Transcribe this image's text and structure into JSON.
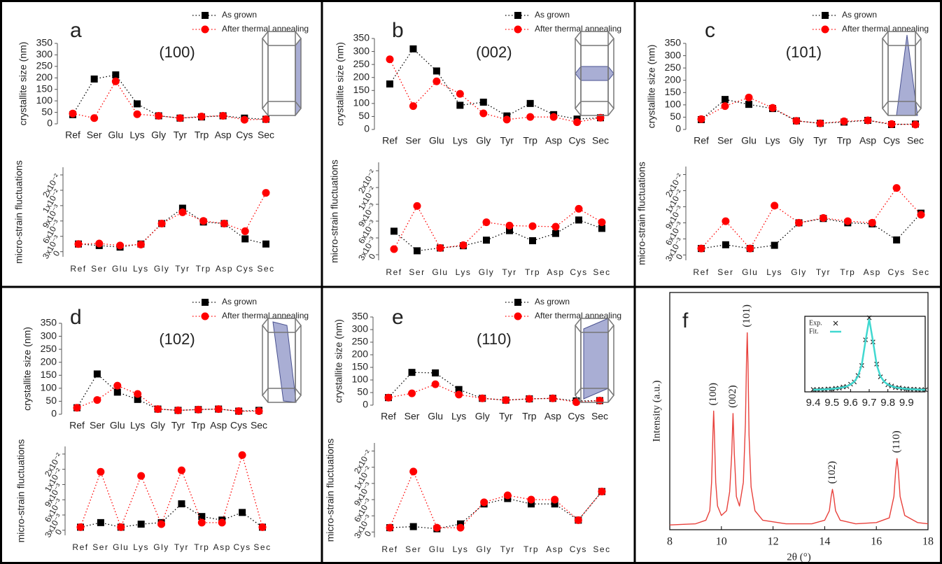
{
  "chart_data": [
    {
      "type": "line",
      "label": "a",
      "title": "(100)",
      "ylabel": "crystallite size (nm)",
      "legend": "upper right",
      "categories": [
        "Ref",
        "Ser",
        "Glu",
        "Lys",
        "Gly",
        "Tyr",
        "Trp",
        "Asp",
        "Cys",
        "Sec"
      ],
      "ylim": [
        0,
        350
      ],
      "yticks": [
        0,
        50,
        100,
        150,
        200,
        250,
        300,
        350
      ],
      "series": [
        {
          "name": "As grown",
          "color": "#000000",
          "marker": "square",
          "values": [
            40,
            195,
            213,
            87,
            35,
            25,
            30,
            35,
            25,
            20
          ]
        },
        {
          "name": "After thermal annealing",
          "color": "#ff0000",
          "marker": "circle",
          "values": [
            45,
            25,
            185,
            42,
            35,
            25,
            32,
            35,
            18,
            20
          ]
        }
      ]
    },
    {
      "type": "line",
      "ylabel": "micro-strain fluctuations",
      "categories": [
        "Ref",
        "Ser",
        "Glu",
        "Lys",
        "Gly",
        "Tyr",
        "Trp",
        "Asp",
        "Cys",
        "Sec"
      ],
      "ylim": [
        -0.001,
        0.0165
      ],
      "yticks": [
        0,
        {
          "value": 0.003,
          "label": "3x10⁻³"
        },
        {
          "value": 0.006,
          "label": "6x10⁻³"
        },
        {
          "value": 0.009,
          "label": "9x10⁻³"
        },
        {
          "value": 0.012,
          "label": "1x10⁻²"
        },
        {
          "value": 0.015,
          "label": "2x10⁻²"
        }
      ],
      "series": [
        {
          "color": "#000000",
          "marker": "square",
          "values": [
            0.0015,
            0.0012,
            0.0009,
            0.0015,
            0.0055,
            0.0085,
            0.0058,
            0.0055,
            0.0025,
            0.0015
          ]
        },
        {
          "color": "#ff0000",
          "marker": "circle",
          "values": [
            0.0015,
            0.0016,
            0.0012,
            0.0014,
            0.0055,
            0.0077,
            0.006,
            0.0055,
            0.004,
            0.0115
          ]
        }
      ]
    },
    {
      "type": "line",
      "label": "b",
      "title": "(002)",
      "ylabel": "crystallite size (nm)",
      "legend": "upper right",
      "categories": [
        "Ref",
        "Ser",
        "Glu",
        "Lys",
        "Gly",
        "Tyr",
        "Trp",
        "Asp",
        "Cys",
        "Sec"
      ],
      "ylim": [
        0,
        350
      ],
      "yticks": [
        0,
        50,
        100,
        150,
        200,
        250,
        300,
        350
      ],
      "series": [
        {
          "name": "As grown",
          "color": "#000000",
          "marker": "square",
          "values": [
            175,
            310,
            225,
            93,
            105,
            52,
            100,
            57,
            40,
            45
          ]
        },
        {
          "name": "After thermal annealing",
          "color": "#ff0000",
          "marker": "circle",
          "values": [
            270,
            90,
            185,
            137,
            62,
            38,
            48,
            48,
            28,
            45
          ]
        }
      ]
    },
    {
      "type": "line",
      "ylabel": "micro-strain fluctuations",
      "categories": [
        "Ref",
        "Ser",
        "Glu",
        "Lys",
        "Gly",
        "Tyr",
        "Trp",
        "Asp",
        "Cys",
        "Sec"
      ],
      "ylim": [
        -0.001,
        0.0165
      ],
      "yticks": [
        0,
        {
          "value": 0.003,
          "label": "3x10⁻³"
        },
        {
          "value": 0.006,
          "label": "6x10⁻³"
        },
        {
          "value": 0.009,
          "label": "9x10⁻³"
        },
        {
          "value": 0.012,
          "label": "1x10⁻²"
        },
        {
          "value": 0.015,
          "label": "2x10⁻²"
        }
      ],
      "series": [
        {
          "color": "#000000",
          "marker": "square",
          "values": [
            0.0042,
            0.0007,
            0.0012,
            0.0016,
            0.0026,
            0.0043,
            0.0025,
            0.0038,
            0.0062,
            0.0047
          ]
        },
        {
          "color": "#ff0000",
          "marker": "circle",
          "values": [
            0.001,
            0.0087,
            0.0012,
            0.0017,
            0.0058,
            0.0052,
            0.0051,
            0.005,
            0.0082,
            0.0058
          ]
        }
      ]
    },
    {
      "type": "line",
      "label": "c",
      "title": "(101)",
      "ylabel": "crystallite size (nm)",
      "legend": "upper right",
      "categories": [
        "Ref",
        "Ser",
        "Glu",
        "Lys",
        "Gly",
        "Tyr",
        "Trp",
        "Asp",
        "Cys",
        "Sec"
      ],
      "ylim": [
        0,
        350
      ],
      "yticks": [
        0,
        50,
        100,
        150,
        200,
        250,
        300,
        350
      ],
      "series": [
        {
          "name": "As grown",
          "color": "#000000",
          "marker": "square",
          "values": [
            40,
            122,
            102,
            85,
            35,
            25,
            30,
            37,
            20,
            22
          ]
        },
        {
          "name": "After thermal annealing",
          "color": "#ff0000",
          "marker": "circle",
          "values": [
            42,
            95,
            130,
            88,
            35,
            25,
            33,
            37,
            22,
            20
          ]
        }
      ]
    },
    {
      "type": "line",
      "ylabel": "micro-strain fluctuations",
      "categories": [
        "Ref",
        "Ser",
        "Glu",
        "Lys",
        "Gly",
        "Tyr",
        "Trp",
        "Asp",
        "Cys",
        "Sec"
      ],
      "ylim": [
        -0.001,
        0.0165
      ],
      "yticks": [
        0,
        {
          "value": 0.003,
          "label": "3x10⁻³"
        },
        {
          "value": 0.006,
          "label": "6x10⁻³"
        },
        {
          "value": 0.009,
          "label": "9x10⁻³"
        },
        {
          "value": 0.012,
          "label": "1x10⁻²"
        },
        {
          "value": 0.015,
          "label": "2x10⁻²"
        }
      ],
      "series": [
        {
          "color": "#000000",
          "marker": "square",
          "values": [
            0.0012,
            0.0019,
            0.0012,
            0.0018,
            0.006,
            0.0068,
            0.006,
            0.0058,
            0.0028,
            0.0078
          ]
        },
        {
          "color": "#ff0000",
          "marker": "circle",
          "values": [
            0.0012,
            0.0063,
            0.0012,
            0.0092,
            0.006,
            0.0069,
            0.0063,
            0.006,
            0.0125,
            0.0075
          ]
        }
      ]
    },
    {
      "type": "line",
      "label": "d",
      "title": "(102)",
      "ylabel": "crystallite size (nm)",
      "legend": "upper right",
      "categories": [
        "Ref",
        "Ser",
        "Glu",
        "Lys",
        "Gly",
        "Tyr",
        "Trp",
        "Asp",
        "Cys",
        "Sec"
      ],
      "ylim": [
        0,
        350
      ],
      "yticks": [
        0,
        50,
        100,
        150,
        200,
        250,
        300,
        350
      ],
      "series": [
        {
          "name": "As grown",
          "color": "#000000",
          "marker": "square",
          "values": [
            25,
            155,
            85,
            57,
            20,
            15,
            18,
            20,
            12,
            15
          ]
        },
        {
          "name": "After thermal annealing",
          "color": "#ff0000",
          "marker": "circle",
          "values": [
            25,
            55,
            110,
            78,
            20,
            15,
            18,
            20,
            12,
            12
          ]
        }
      ]
    },
    {
      "type": "line",
      "ylabel": "micro-strain fluctuations",
      "categories": [
        "Ref",
        "Ser",
        "Glu",
        "Lys",
        "Gly",
        "Tyr",
        "Trp",
        "Asp",
        "Cys",
        "Sec"
      ],
      "ylim": [
        -0.001,
        0.0165
      ],
      "yticks": [
        0,
        {
          "value": 0.003,
          "label": "3x10⁻³"
        },
        {
          "value": 0.006,
          "label": "6x10⁻³"
        },
        {
          "value": 0.009,
          "label": "9x10⁻³"
        },
        {
          "value": 0.012,
          "label": "1x10⁻²"
        },
        {
          "value": 0.015,
          "label": "2x10⁻²"
        }
      ],
      "series": [
        {
          "color": "#000000",
          "marker": "square",
          "values": [
            0.0006,
            0.0015,
            0.0006,
            0.0012,
            0.0015,
            0.0052,
            0.0027,
            0.002,
            0.0035,
            0.0006
          ]
        },
        {
          "color": "#ff0000",
          "marker": "circle",
          "values": [
            0.0006,
            0.0115,
            0.0006,
            0.0107,
            0.0012,
            0.0118,
            0.0015,
            0.0015,
            0.0148,
            0.0006
          ]
        }
      ]
    },
    {
      "type": "line",
      "label": "e",
      "title": "(110)",
      "ylabel": "crystallite size (nm)",
      "legend": "upper right",
      "categories": [
        "Ref",
        "Ser",
        "Glu",
        "Lys",
        "Gly",
        "Tyr",
        "Trp",
        "Asp",
        "Cys",
        "Sec"
      ],
      "ylim": [
        0,
        350
      ],
      "yticks": [
        0,
        50,
        100,
        150,
        200,
        250,
        300,
        350
      ],
      "series": [
        {
          "name": "As grown",
          "color": "#000000",
          "marker": "square",
          "values": [
            30,
            130,
            128,
            62,
            27,
            20,
            25,
            27,
            17,
            18
          ]
        },
        {
          "name": "After thermal annealing",
          "color": "#ff0000",
          "marker": "circle",
          "values": [
            30,
            47,
            83,
            42,
            27,
            20,
            25,
            27,
            12,
            18
          ]
        }
      ]
    },
    {
      "type": "line",
      "ylabel": "micro-strain fluctuations",
      "categories": [
        "Ref",
        "Ser",
        "Glu",
        "Lys",
        "Gly",
        "Tyr",
        "Trp",
        "Asp",
        "Cys",
        "Sec"
      ],
      "ylim": [
        -0.001,
        0.0165
      ],
      "yticks": [
        0,
        {
          "value": 0.003,
          "label": "3x10⁻³"
        },
        {
          "value": 0.006,
          "label": "6x10⁻³"
        },
        {
          "value": 0.009,
          "label": "9x10⁻³"
        },
        {
          "value": 0.012,
          "label": "1x10⁻²"
        },
        {
          "value": 0.015,
          "label": "2x10⁻²"
        }
      ],
      "series": [
        {
          "color": "#000000",
          "marker": "square",
          "values": [
            0.0008,
            0.001,
            0.0006,
            0.0015,
            0.0052,
            0.0062,
            0.0052,
            0.0052,
            0.0022,
            0.0075
          ]
        },
        {
          "color": "#ff0000",
          "marker": "circle",
          "values": [
            0.0008,
            0.0112,
            0.0008,
            0.0008,
            0.0055,
            0.0068,
            0.006,
            0.006,
            0.0022,
            0.0075
          ]
        }
      ]
    },
    {
      "type": "spectrum",
      "label": "f",
      "xlabel": "2θ (°)",
      "ylabel": "Intensity (a.u.)",
      "xlim": [
        8,
        18
      ],
      "xticks": [
        8,
        10,
        12,
        14,
        16,
        18
      ],
      "ylim": [
        0,
        100
      ],
      "x": [
        8,
        9,
        9.4,
        9.55,
        9.62,
        9.67,
        9.7,
        9.73,
        9.78,
        9.85,
        10.0,
        10.2,
        10.32,
        10.4,
        10.45,
        10.5,
        10.58,
        10.7,
        10.85,
        10.93,
        10.97,
        11.0,
        11.03,
        11.07,
        11.15,
        11.3,
        11.6,
        12.5,
        13.5,
        14.0,
        14.18,
        14.25,
        14.3,
        14.35,
        14.42,
        14.6,
        15.2,
        16.0,
        16.5,
        16.68,
        16.75,
        16.8,
        16.85,
        16.92,
        17.1,
        17.6,
        18
      ],
      "series": [
        {
          "color": "#e8413c",
          "values": [
            2,
            2.5,
            4,
            8,
            20,
            40,
            50,
            40,
            20,
            10,
            6,
            8,
            16,
            32,
            49,
            32,
            14,
            10,
            20,
            45,
            70,
            83,
            70,
            40,
            18,
            8,
            4,
            2.5,
            2.5,
            4,
            8,
            14,
            17,
            14,
            8,
            4,
            2.5,
            3,
            5,
            14,
            25,
            30,
            25,
            14,
            6,
            3,
            2.5
          ]
        }
      ],
      "annotations": [
        {
          "text": "(100)",
          "x": 9.7
        },
        {
          "text": "(002)",
          "x": 10.45
        },
        {
          "text": "(101)",
          "x": 11.0
        },
        {
          "text": "(102)",
          "x": 14.3
        },
        {
          "text": "(110)",
          "x": 16.8
        }
      ]
    },
    {
      "type": "inset",
      "legend": "upper left",
      "xlim": [
        9.4,
        10.0
      ],
      "xticks": [
        9.4,
        9.5,
        9.6,
        9.7,
        9.8,
        9.9
      ],
      "ylim": [
        0,
        106
      ],
      "x": [
        9.4,
        9.42,
        9.44,
        9.46,
        9.48,
        9.5,
        9.52,
        9.54,
        9.56,
        9.58,
        9.6,
        9.62,
        9.64,
        9.66,
        9.68,
        9.7,
        9.72,
        9.74,
        9.76,
        9.78,
        9.8,
        9.82,
        9.84,
        9.86,
        9.88,
        9.9,
        9.92,
        9.94,
        9.96,
        9.98,
        10.0
      ],
      "series": [
        {
          "name": "Exp.",
          "color": "#222222",
          "marker": "x",
          "values": [
            3.4,
            3.0,
            3.6,
            3.3,
            4.1,
            4.0,
            5.0,
            5.2,
            6.8,
            7.6,
            10.8,
            13.9,
            23,
            37,
            73,
            104,
            70,
            39,
            21,
            14.8,
            9.9,
            8.2,
            6.1,
            5.7,
            4.5,
            4.4,
            3.6,
            3.7,
            3.1,
            3.3,
            2.9
          ]
        },
        {
          "name": "Fit.",
          "color": "#40d8d0",
          "marker": "line",
          "values": [
            3.0,
            3.1,
            3.3,
            3.5,
            3.8,
            4.2,
            4.7,
            5.4,
            6.4,
            7.9,
            10.3,
            14.3,
            22,
            38,
            71.2,
            102,
            71.2,
            38,
            22,
            14.3,
            10.3,
            7.9,
            6.4,
            5.4,
            4.7,
            4.2,
            3.8,
            3.5,
            3.3,
            3.1,
            3.0
          ]
        }
      ]
    }
  ]
}
